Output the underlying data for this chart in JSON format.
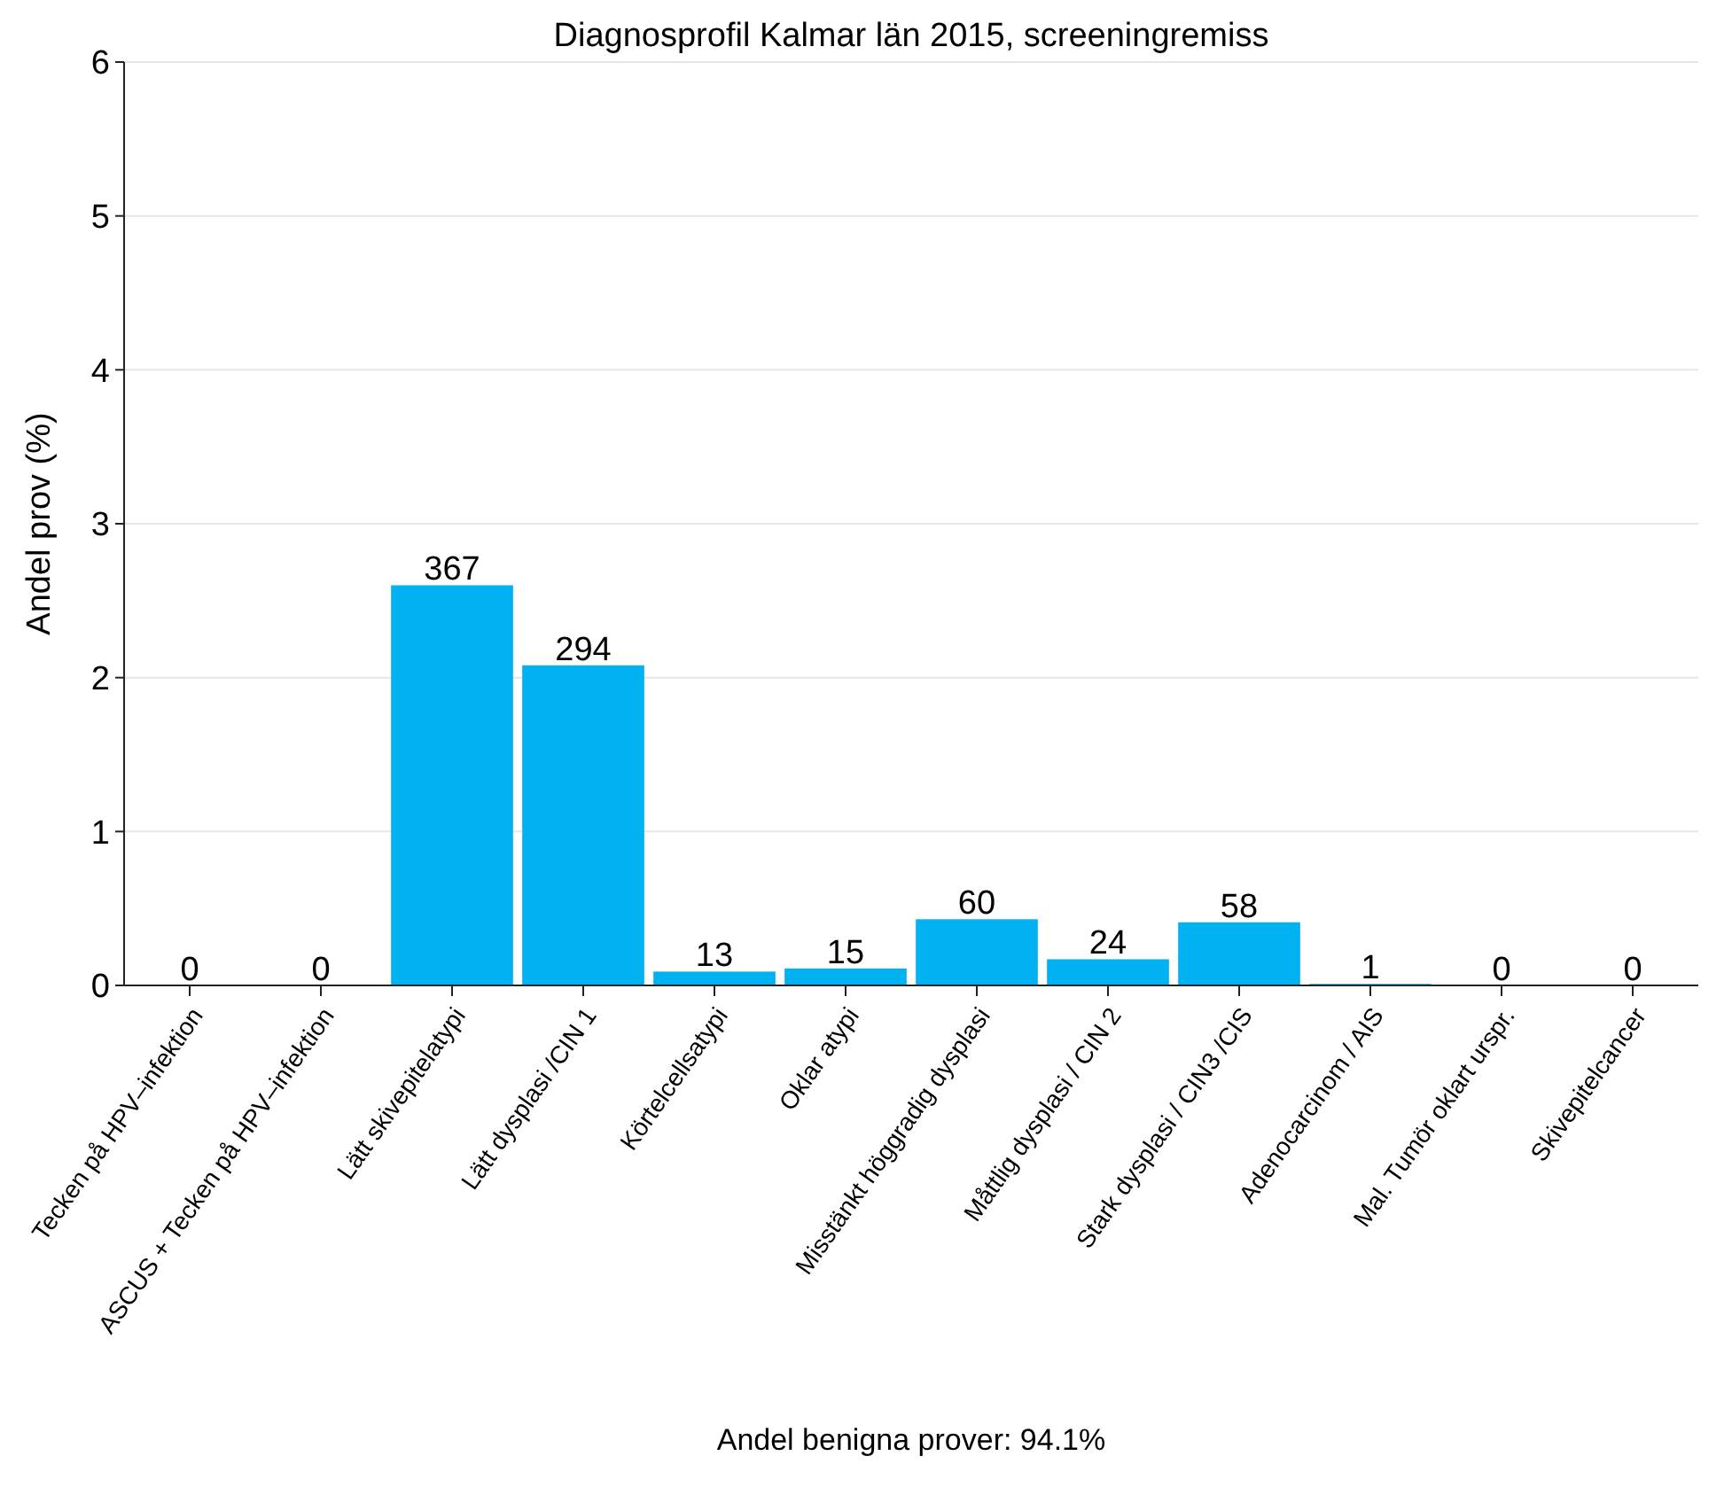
{
  "chart_data": {
    "type": "bar",
    "title": "Diagnosprofil Kalmar län 2015, screeningremiss",
    "xlabel": "Andel benigna prover: 94.1%",
    "ylabel": "Andel prov (%)",
    "categories": [
      "Tecken på HPV–infektion",
      "ASCUS + Tecken på HPV–infektion",
      "Lätt skivepitelatypi",
      "Lätt dysplasi /CIN 1",
      "Körtelcellsatypi",
      "Oklar atypi",
      "Misstänkt höggradig dysplasi",
      "Måttlig dysplasi / CIN 2",
      "Stark dysplasi / CIN3 /CIS",
      "Adenocarcinom / AIS",
      "Mal. Tumör oklart urspr.",
      "Skivepitelcancer"
    ],
    "values": [
      0,
      0,
      2.6,
      2.08,
      0.09,
      0.11,
      0.43,
      0.17,
      0.41,
      0.01,
      0,
      0
    ],
    "annotations": [
      {
        "text": "0",
        "x": "Tecken på HPV–infektion",
        "y": 0
      },
      {
        "text": "0",
        "x": "ASCUS + Tecken på HPV–infektion",
        "y": 0
      },
      {
        "text": "367",
        "x": "Lätt skivepitelatypi",
        "y": 2.6
      },
      {
        "text": "294",
        "x": "Lätt dysplasi /CIN 1",
        "y": 2.08
      },
      {
        "text": "13",
        "x": "Körtelcellsatypi",
        "y": 0.09
      },
      {
        "text": "15",
        "x": "Oklar atypi",
        "y": 0.11
      },
      {
        "text": "60",
        "x": "Misstänkt höggradig dysplasi",
        "y": 0.43
      },
      {
        "text": "24",
        "x": "Måttlig dysplasi / CIN 2",
        "y": 0.17
      },
      {
        "text": "58",
        "x": "Stark dysplasi / CIN3 /CIS",
        "y": 0.41
      },
      {
        "text": "1",
        "x": "Adenocarcinom / AIS",
        "y": 0.01
      },
      {
        "text": "0",
        "x": "Mal. Tumör oklart urspr.",
        "y": 0
      },
      {
        "text": "0",
        "x": "Skivepitelcancer",
        "y": 0
      }
    ],
    "color": "#00b2f2",
    "ylim": [
      0,
      6
    ],
    "yticks": [
      0,
      1,
      2,
      3,
      4,
      5,
      6
    ],
    "grid": "y"
  }
}
